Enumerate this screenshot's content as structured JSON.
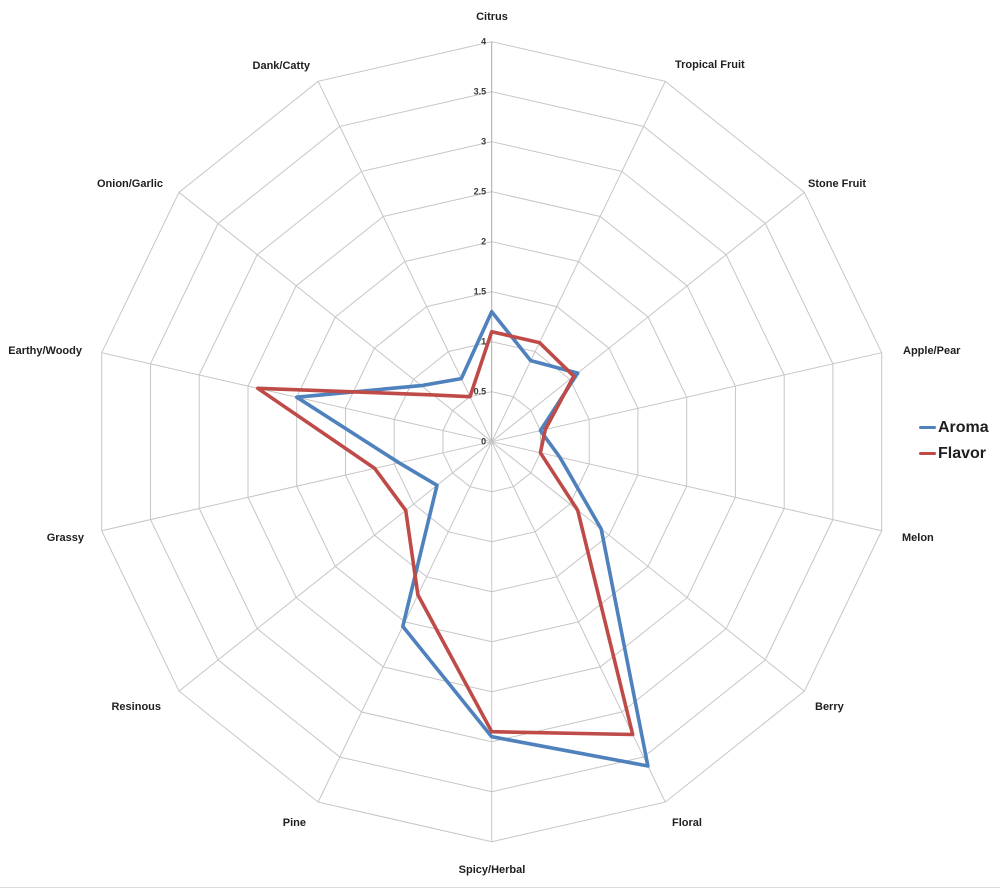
{
  "chart_data": {
    "type": "radar",
    "categories": [
      "Citrus",
      "Tropical Fruit",
      "Stone Fruit",
      "Apple/Pear",
      "Melon",
      "Berry",
      "Floral",
      "Spicy/Herbal",
      "Pine",
      "Resinous",
      "Grassy",
      "Earthy/Woody",
      "Onion/Garlic",
      "Dank/Catty"
    ],
    "series": [
      {
        "name": "Aroma",
        "color": "#4F81BD",
        "values": [
          1.3,
          0.9,
          1.1,
          0.5,
          0.7,
          1.4,
          3.6,
          2.95,
          2.05,
          0.7,
          0.95,
          2.0,
          0.9,
          0.7
        ]
      },
      {
        "name": "Flavor",
        "color": "#BE4B48",
        "values": [
          1.1,
          1.1,
          1.05,
          0.55,
          0.5,
          1.1,
          3.25,
          2.9,
          1.7,
          1.1,
          1.2,
          2.4,
          0.75,
          0.5
        ]
      }
    ],
    "radial_axis": {
      "min": 0,
      "max": 4,
      "tick_interval": 0.5,
      "tick_labels": [
        "0",
        "0.5",
        "1",
        "1.5",
        "2",
        "2.5",
        "3",
        "3.5",
        "4"
      ]
    },
    "grid": true,
    "legend_position": "right",
    "colors": {
      "grid_line": "#c6c6c6",
      "main_axis_line": "#a8a8a8",
      "category_label": "#1f1f1f",
      "tick_label": "#3a3a3a",
      "background": "#ffffff"
    }
  }
}
